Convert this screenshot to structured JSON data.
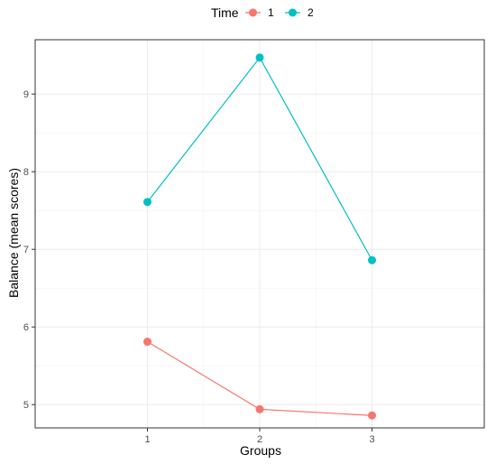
{
  "chart_data": {
    "type": "line",
    "title": "",
    "xlabel": "Groups",
    "ylabel": "Balance (mean scores)",
    "categories": [
      "1",
      "2",
      "3"
    ],
    "ylim": [
      4.7,
      9.7
    ],
    "yticks": [
      "5",
      "6",
      "7",
      "8",
      "9"
    ],
    "grid": true,
    "legend": {
      "title": "Time",
      "placement": "top"
    },
    "series": [
      {
        "name": "1",
        "color": "#F8766D",
        "values": [
          5.81,
          4.94,
          4.86
        ]
      },
      {
        "name": "2",
        "color": "#00BFC4",
        "values": [
          7.61,
          9.47,
          6.86
        ]
      }
    ]
  }
}
